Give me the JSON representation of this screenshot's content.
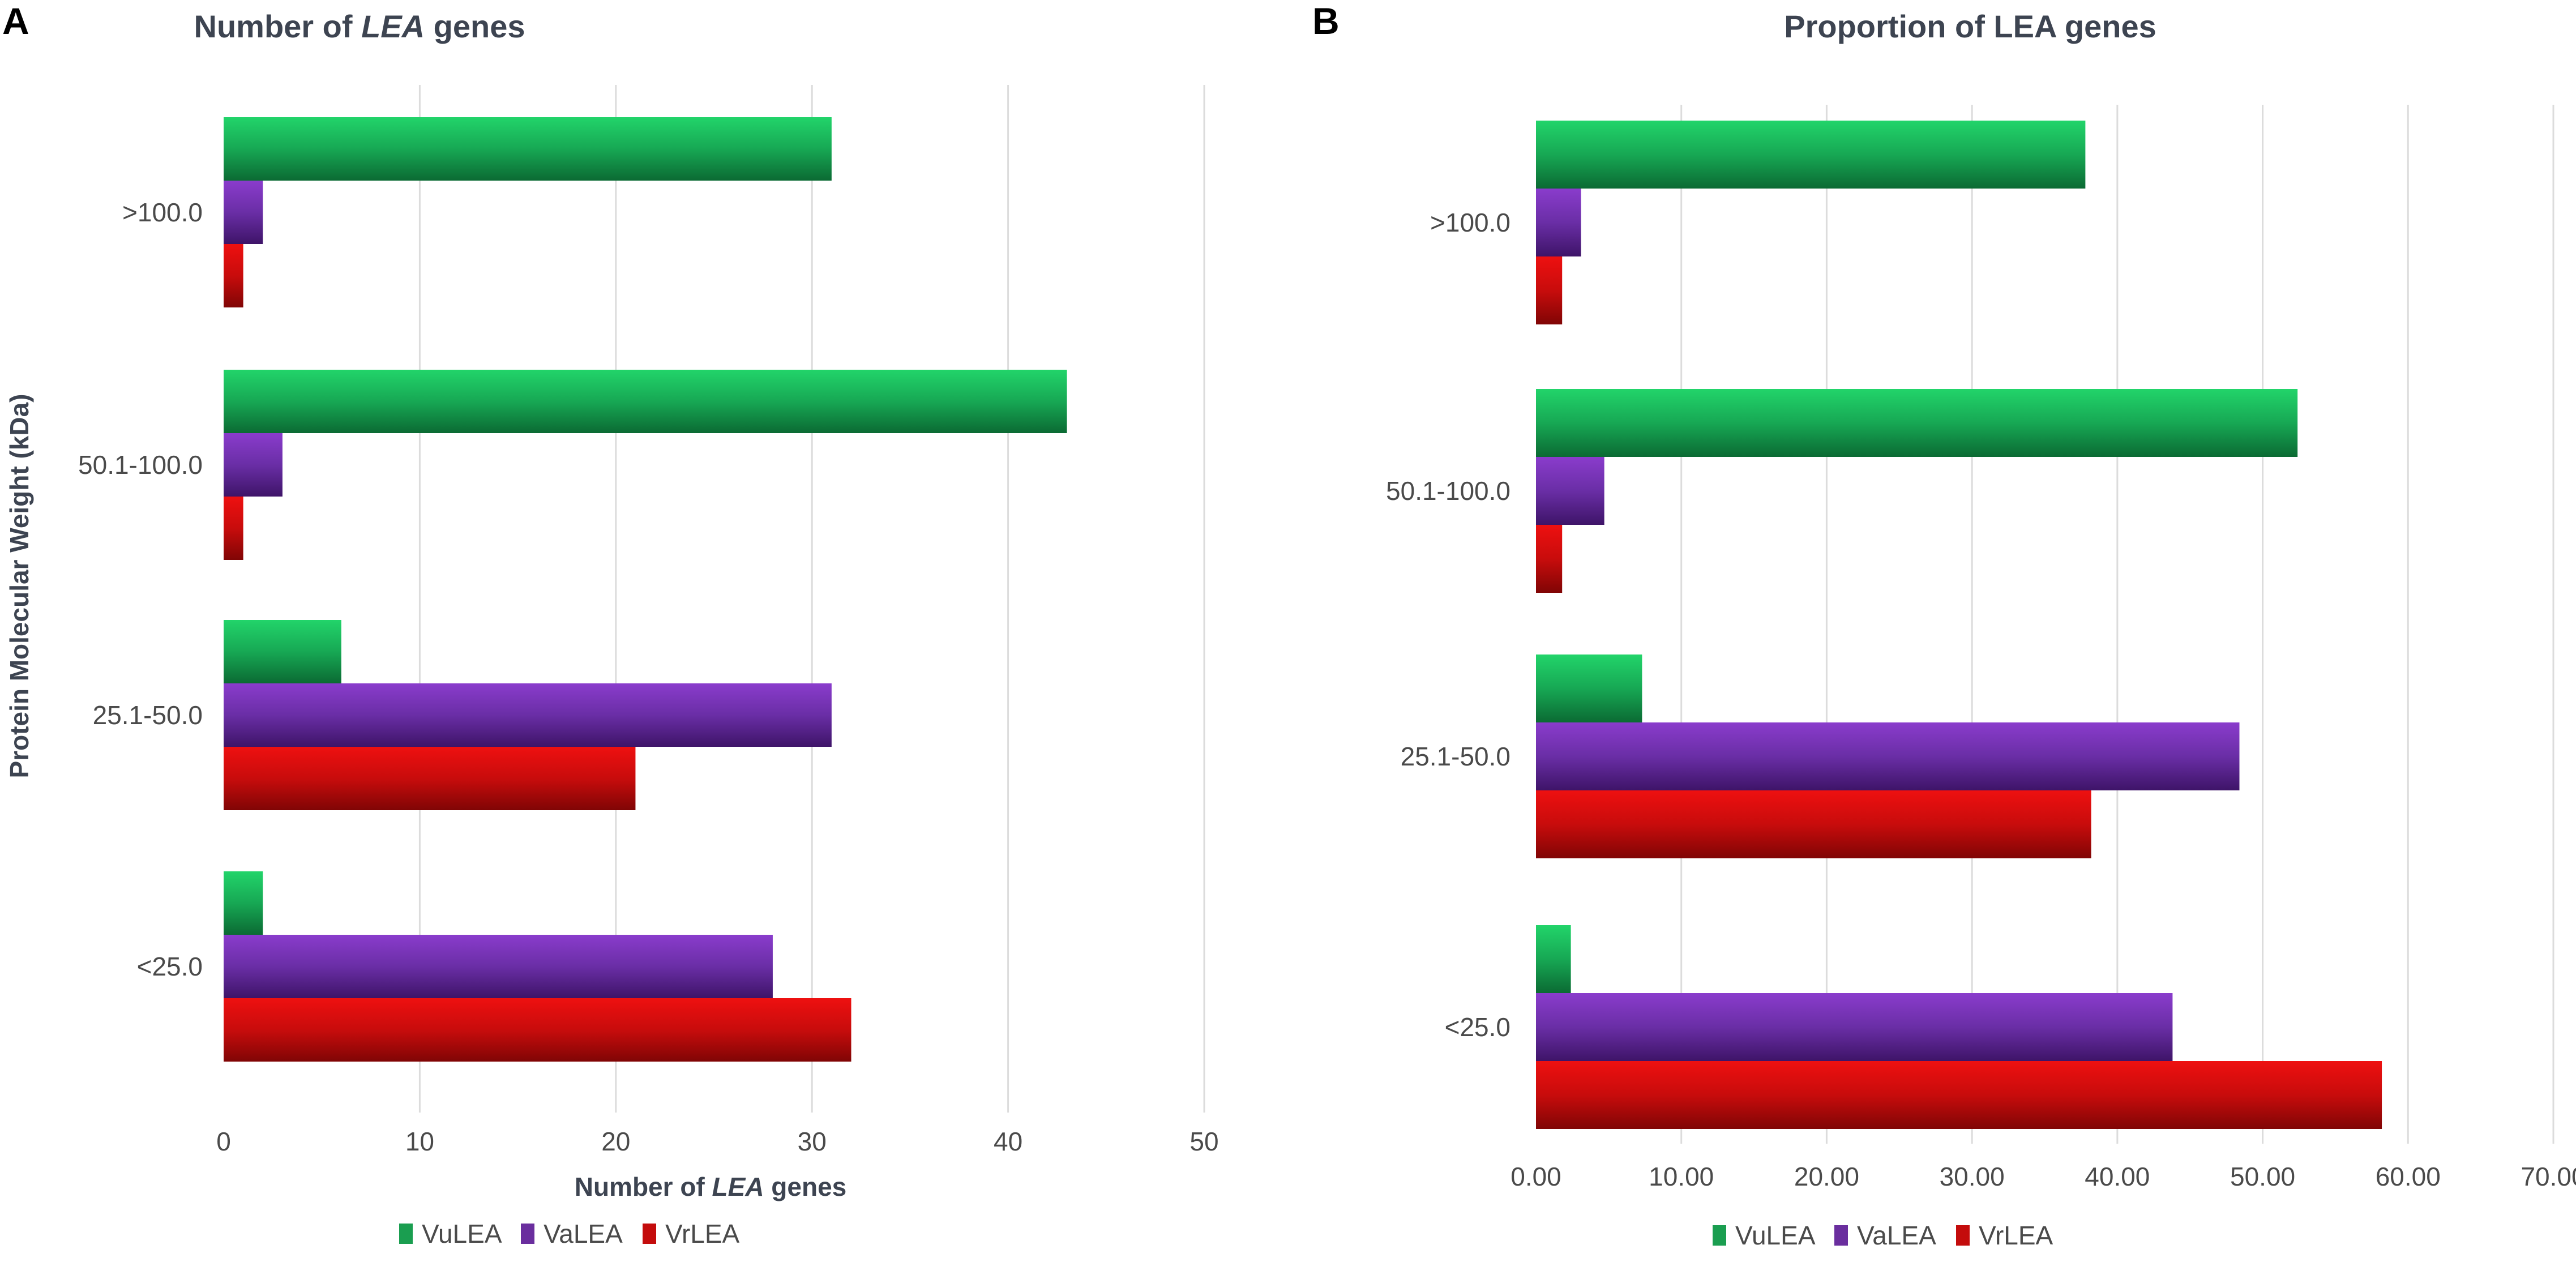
{
  "panels": {
    "a": {
      "letter": "A"
    },
    "b": {
      "letter": "B"
    }
  },
  "colors": {
    "VuLEA": "#1a9e50",
    "VaLEA": "#6a2e9e",
    "VrLEA": "#c40c0c"
  },
  "chart_data": [
    {
      "type": "bar",
      "orientation": "horizontal",
      "title": "Number of LEA genes",
      "xlabel": "Number of LEA genes",
      "ylabel": "Protein Molecular Weight (kDa)",
      "categories": [
        ">100.0",
        "50.1-100.0",
        "25.1-50.0",
        "<25.0"
      ],
      "xlim": [
        0,
        50
      ],
      "xticks": [
        "0",
        "10",
        "20",
        "30",
        "40",
        "50"
      ],
      "grid": true,
      "legend": "bottom-center",
      "legend_labels": [
        "VuLEA",
        "VaLEA",
        "VrLEA"
      ],
      "series": [
        {
          "name": "VuLEA",
          "values": [
            31,
            43,
            6,
            2
          ]
        },
        {
          "name": "VaLEA",
          "values": [
            2,
            3,
            31,
            28
          ]
        },
        {
          "name": "VrLEA",
          "values": [
            1,
            1,
            21,
            32
          ]
        }
      ]
    },
    {
      "type": "bar",
      "orientation": "horizontal",
      "title": "Proportion of LEA genes",
      "xlabel": "",
      "ylabel": "",
      "categories": [
        ">100.0",
        "50.1-100.0",
        "25.1-50.0",
        "<25.0"
      ],
      "xlim": [
        0,
        70
      ],
      "xticks": [
        "0.00",
        "10.00",
        "20.00",
        "30.00",
        "40.00",
        "50.00",
        "60.00",
        "70.00"
      ],
      "grid": true,
      "legend": "bottom-center",
      "legend_labels": [
        "VuLEA",
        "VaLEA",
        "VrLEA"
      ],
      "series": [
        {
          "name": "VuLEA",
          "values": [
            37.8,
            52.4,
            7.3,
            2.4
          ]
        },
        {
          "name": "VaLEA",
          "values": [
            3.1,
            4.7,
            48.4,
            43.8
          ]
        },
        {
          "name": "VrLEA",
          "values": [
            1.8,
            1.8,
            38.2,
            58.2
          ]
        }
      ]
    }
  ]
}
